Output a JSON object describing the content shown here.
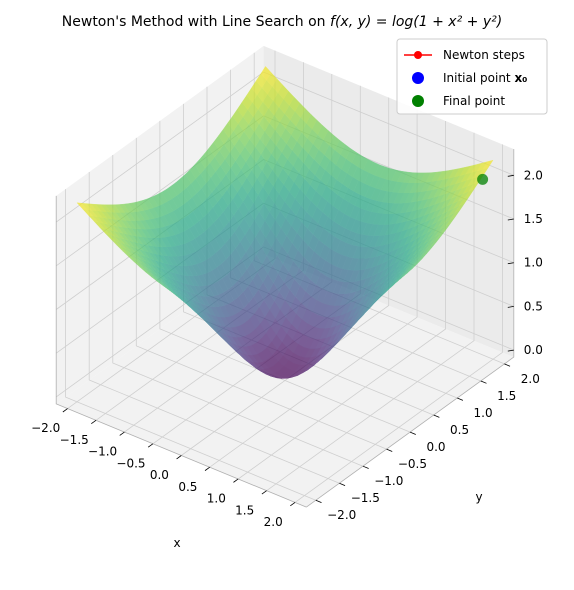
{
  "chart_data": {
    "type": "surface3d",
    "title": "Newton's Method with Line Search on f(x, y) = log(1 + x² + y²)",
    "title_plain": "Newton's Method with Line Search on ",
    "title_math": "f(x, y) = log(1 + x² + y²)",
    "xlabel": "x",
    "ylabel": "y",
    "zlabel": "",
    "xlim": [
      -2.2,
      2.2
    ],
    "ylim": [
      -2.2,
      2.2
    ],
    "zlim": [
      -0.08,
      2.3
    ],
    "x_ticks": [
      "−2.0",
      "−1.5",
      "−1.0",
      "−0.5",
      "0.0",
      "0.5",
      "1.0",
      "1.5",
      "2.0"
    ],
    "y_ticks": [
      "−2.0",
      "−1.5",
      "−1.0",
      "−0.5",
      "0.0",
      "0.5",
      "1.0",
      "1.5",
      "2.0"
    ],
    "z_ticks": [
      "0.0",
      "0.5",
      "1.0",
      "1.5",
      "2.0"
    ],
    "surface": {
      "function": "log(1 + x^2 + y^2)",
      "x_range": [
        -2,
        2
      ],
      "y_range": [
        -2,
        2
      ],
      "colormap": "viridis",
      "alpha": 0.7
    },
    "series": [
      {
        "name": "Newton steps",
        "marker": "o",
        "color": "#ff0000",
        "line": true,
        "points": []
      },
      {
        "name": "Initial point x0",
        "label_prefix": "Initial point ",
        "label_math": "x₀",
        "marker": "o",
        "color": "#0000ff",
        "points": []
      },
      {
        "name": "Final point",
        "marker": "o",
        "color": "#008000",
        "points": [
          [
            1.9,
            1.9,
            1.99
          ]
        ]
      }
    ],
    "legend_position": "top-right",
    "grid": true
  }
}
